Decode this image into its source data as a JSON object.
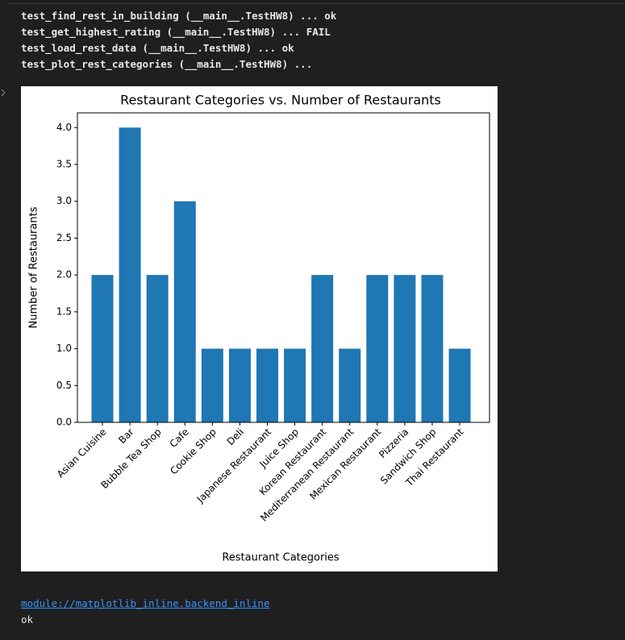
{
  "console": {
    "lines": [
      "test_find_rest_in_building (__main__.TestHW8) ... ok",
      "test_get_highest_rating (__main__.TestHW8) ... FAIL",
      "test_load_rest_data (__main__.TestHW8) ... ok",
      "test_plot_rest_categories (__main__.TestHW8) ..."
    ]
  },
  "chart_data": {
    "type": "bar",
    "title": "Restaurant Categories vs. Number of Restaurants",
    "x_label": "Restaurant Categories",
    "y_label": "Number of Restaurants",
    "categories": [
      "Asian Cuisine",
      "Bar",
      "Bubble Tea Shop",
      "Cafe",
      "Cookie Shop",
      "Deli",
      "Japanese Restaurant",
      "Juice Shop",
      "Korean Restaurant",
      "Mediterranean Restaurant",
      "Mexican Restaurant",
      "Pizzeria",
      "Sandwich Shop",
      "Thai Restaurant"
    ],
    "values": [
      2,
      4,
      2,
      3,
      1,
      1,
      1,
      1,
      2,
      1,
      2,
      2,
      2,
      1
    ],
    "color": "#1f77b4",
    "ylim": [
      0,
      4.2
    ],
    "yticks": [
      {
        "value": 0,
        "label": "0.0"
      },
      0.5,
      {
        "value": 1,
        "label": "1.0"
      },
      1.5,
      {
        "value": 2,
        "label": "2.0"
      },
      2.5,
      {
        "value": 3,
        "label": "3.0"
      },
      3.5,
      {
        "value": 4,
        "label": "4.0"
      }
    ],
    "grid": false
  },
  "output": {
    "link": "module://matplotlib_inline.backend_inline",
    "status": "ok"
  }
}
